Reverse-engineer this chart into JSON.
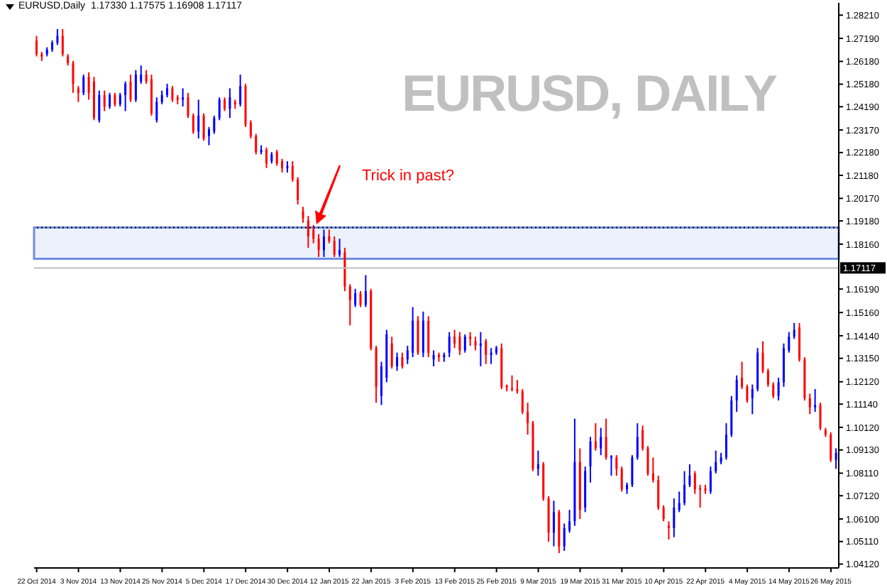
{
  "chart_data": {
    "type": "candlestick",
    "title": "EURUSD,Daily  1.17330 1.17575 1.16908 1.17117",
    "categories": [
      "22 Oct 2014",
      null,
      null,
      null,
      null,
      null,
      null,
      null,
      "3 Nov 2014",
      null,
      null,
      null,
      null,
      null,
      null,
      null,
      "13 Nov 2014",
      null,
      null,
      null,
      null,
      null,
      null,
      null,
      "25 Nov 2014",
      null,
      null,
      null,
      null,
      null,
      null,
      null,
      "5 Dec 2014",
      null,
      null,
      null,
      null,
      null,
      null,
      null,
      "17 Dec 2014",
      null,
      null,
      null,
      null,
      null,
      null,
      null,
      "30 Dec 2014",
      null,
      null,
      null,
      null,
      null,
      null,
      null,
      "12 Jan 2015",
      null,
      null,
      null,
      null,
      null,
      null,
      null,
      "22 Jan 2015",
      null,
      null,
      null,
      null,
      null,
      null,
      null,
      "3 Feb 2015",
      null,
      null,
      null,
      null,
      null,
      null,
      null,
      "13 Feb 2015",
      null,
      null,
      null,
      null,
      null,
      null,
      null,
      "25 Feb 2015",
      null,
      null,
      null,
      null,
      null,
      null,
      null,
      "9 Mar 2015",
      null,
      null,
      null,
      null,
      null,
      null,
      null,
      "19 Mar 2015",
      null,
      null,
      null,
      null,
      null,
      null,
      null,
      "31 Mar 2015",
      null,
      null,
      null,
      null,
      null,
      null,
      null,
      "10 Apr 2015",
      null,
      null,
      null,
      null,
      null,
      null,
      null,
      "22 Apr 2015",
      null,
      null,
      null,
      null,
      null,
      null,
      null,
      "4 May 2015",
      null,
      null,
      null,
      null,
      null,
      null,
      null,
      "14 May 2015",
      null,
      null,
      null,
      null,
      null,
      null,
      null,
      "26 May 2015",
      null
    ],
    "ohlc": [
      [
        1.271,
        1.273,
        1.264,
        1.265
      ],
      [
        1.265,
        1.266,
        1.262,
        1.264
      ],
      [
        1.265,
        1.268,
        1.264,
        1.267
      ],
      [
        1.267,
        1.271,
        1.266,
        1.27
      ],
      [
        1.27,
        1.276,
        1.269,
        1.273
      ],
      [
        1.273,
        1.276,
        1.264,
        1.265
      ],
      [
        1.264,
        1.265,
        1.26,
        1.261
      ],
      [
        1.261,
        1.262,
        1.248,
        1.252
      ],
      [
        1.25,
        1.251,
        1.244,
        1.248
      ],
      [
        1.248,
        1.256,
        1.247,
        1.255
      ],
      [
        1.255,
        1.257,
        1.245,
        1.248
      ],
      [
        1.253,
        1.255,
        1.236,
        1.237
      ],
      [
        1.236,
        1.249,
        1.235,
        1.247
      ],
      [
        1.247,
        1.249,
        1.24,
        1.242
      ],
      [
        1.242,
        1.248,
        1.241,
        1.247
      ],
      [
        1.247,
        1.248,
        1.242,
        1.243
      ],
      [
        1.243,
        1.248,
        1.242,
        1.247
      ],
      [
        1.247,
        1.253,
        1.24,
        1.252
      ],
      [
        1.253,
        1.256,
        1.244,
        1.245
      ],
      [
        1.245,
        1.258,
        1.244,
        1.256
      ],
      [
        1.253,
        1.26,
        1.252,
        1.256
      ],
      [
        1.256,
        1.258,
        1.252,
        1.253
      ],
      [
        1.254,
        1.256,
        1.238,
        1.239
      ],
      [
        1.236,
        1.246,
        1.235,
        1.244
      ],
      [
        1.244,
        1.249,
        1.243,
        1.247
      ],
      [
        1.247,
        1.252,
        1.246,
        1.25
      ],
      [
        1.25,
        1.251,
        1.244,
        1.245
      ],
      [
        1.246,
        1.247,
        1.243,
        1.245
      ],
      [
        1.245,
        1.25,
        1.242,
        1.246
      ],
      [
        1.246,
        1.248,
        1.237,
        1.238
      ],
      [
        1.238,
        1.239,
        1.23,
        1.231
      ],
      [
        1.231,
        1.245,
        1.228,
        1.238
      ],
      [
        1.238,
        1.239,
        1.227,
        1.228
      ],
      [
        1.229,
        1.233,
        1.225,
        1.232
      ],
      [
        1.231,
        1.238,
        1.23,
        1.237
      ],
      [
        1.237,
        1.246,
        1.236,
        1.245
      ],
      [
        1.245,
        1.246,
        1.24,
        1.241
      ],
      [
        1.241,
        1.25,
        1.237,
        1.246
      ],
      [
        1.244,
        1.245,
        1.241,
        1.243
      ],
      [
        1.243,
        1.256,
        1.242,
        1.251
      ],
      [
        1.251,
        1.252,
        1.233,
        1.234
      ],
      [
        1.235,
        1.236,
        1.228,
        1.229
      ],
      [
        1.229,
        1.23,
        1.221,
        1.222
      ],
      [
        1.222,
        1.225,
        1.221,
        1.223
      ],
      [
        1.223,
        1.224,
        1.215,
        1.217
      ],
      [
        1.218,
        1.222,
        1.217,
        1.221
      ],
      [
        1.222,
        1.223,
        1.216,
        1.217
      ],
      [
        1.218,
        1.219,
        1.213,
        1.215
      ],
      [
        1.215,
        1.218,
        1.213,
        1.216
      ],
      [
        1.216,
        1.218,
        1.209,
        1.21
      ],
      [
        1.21,
        1.211,
        1.199,
        1.201
      ],
      [
        1.196,
        1.198,
        1.191,
        1.193
      ],
      [
        1.192,
        1.194,
        1.18,
        1.185
      ],
      [
        1.188,
        1.19,
        1.182,
        1.184
      ],
      [
        1.184,
        1.186,
        1.176,
        1.179
      ],
      [
        1.179,
        1.188,
        1.176,
        1.185
      ],
      [
        1.185,
        1.188,
        1.182,
        1.183
      ],
      [
        1.183,
        1.185,
        1.176,
        1.177
      ],
      [
        1.177,
        1.184,
        1.176,
        1.179
      ],
      [
        1.178,
        1.18,
        1.161,
        1.163
      ],
      [
        1.163,
        1.164,
        1.146,
        1.157
      ],
      [
        1.155,
        1.162,
        1.154,
        1.16
      ],
      [
        1.16,
        1.161,
        1.154,
        1.155
      ],
      [
        1.155,
        1.168,
        1.154,
        1.161
      ],
      [
        1.161,
        1.162,
        1.135,
        1.136
      ],
      [
        1.136,
        1.137,
        1.112,
        1.119
      ],
      [
        1.115,
        1.13,
        1.111,
        1.128
      ],
      [
        1.123,
        1.144,
        1.121,
        1.142
      ],
      [
        1.138,
        1.141,
        1.127,
        1.128
      ],
      [
        1.128,
        1.134,
        1.126,
        1.132
      ],
      [
        1.132,
        1.134,
        1.127,
        1.128
      ],
      [
        1.131,
        1.137,
        1.129,
        1.135
      ],
      [
        1.134,
        1.154,
        1.132,
        1.148
      ],
      [
        1.148,
        1.15,
        1.133,
        1.134
      ],
      [
        1.134,
        1.152,
        1.132,
        1.148
      ],
      [
        1.148,
        1.15,
        1.132,
        1.134
      ],
      [
        1.131,
        1.135,
        1.128,
        1.133
      ],
      [
        1.133,
        1.134,
        1.13,
        1.132
      ],
      [
        1.132,
        1.134,
        1.13,
        1.133
      ],
      [
        1.134,
        1.143,
        1.132,
        1.141
      ],
      [
        1.141,
        1.144,
        1.136,
        1.138
      ],
      [
        1.141,
        1.143,
        1.133,
        1.135
      ],
      [
        1.135,
        1.142,
        1.134,
        1.141
      ],
      [
        1.141,
        1.143,
        1.137,
        1.14
      ],
      [
        1.139,
        1.141,
        1.135,
        1.137
      ],
      [
        1.137,
        1.143,
        1.128,
        1.138
      ],
      [
        1.139,
        1.14,
        1.129,
        1.133
      ],
      [
        1.133,
        1.136,
        1.129,
        1.134
      ],
      [
        1.134,
        1.137,
        1.133,
        1.136
      ],
      [
        1.136,
        1.138,
        1.118,
        1.119
      ],
      [
        1.1195,
        1.12,
        1.117,
        1.1188
      ],
      [
        1.1185,
        1.124,
        1.117,
        1.118
      ],
      [
        1.118,
        1.122,
        1.116,
        1.117
      ],
      [
        1.117,
        1.118,
        1.107,
        1.108
      ],
      [
        1.108,
        1.112,
        1.098,
        1.103
      ],
      [
        1.103,
        1.104,
        1.082,
        1.083
      ],
      [
        1.083,
        1.091,
        1.08,
        1.085
      ],
      [
        1.085,
        1.086,
        1.069,
        1.07
      ],
      [
        1.07,
        1.071,
        1.051,
        1.055
      ],
      [
        1.055,
        1.069,
        1.049,
        1.064
      ],
      [
        1.064,
        1.065,
        1.046,
        1.049
      ],
      [
        1.049,
        1.059,
        1.047,
        1.057
      ],
      [
        1.056,
        1.065,
        1.055,
        1.06
      ],
      [
        1.06,
        1.105,
        1.058,
        1.086
      ],
      [
        1.086,
        1.092,
        1.061,
        1.065
      ],
      [
        1.066,
        1.084,
        1.064,
        1.082
      ],
      [
        1.084,
        1.097,
        1.077,
        1.095
      ],
      [
        1.095,
        1.103,
        1.091,
        1.092
      ],
      [
        1.092,
        1.101,
        1.089,
        1.097
      ],
      [
        1.097,
        1.105,
        1.087,
        1.088
      ],
      [
        1.088,
        1.089,
        1.08,
        1.0885
      ],
      [
        1.088,
        1.089,
        1.08,
        1.083
      ],
      [
        1.083,
        1.084,
        1.073,
        1.074
      ],
      [
        1.074,
        1.077,
        1.072,
        1.076
      ],
      [
        1.076,
        1.089,
        1.075,
        1.088
      ],
      [
        1.088,
        1.103,
        1.087,
        1.097
      ],
      [
        1.1,
        1.102,
        1.091,
        1.092
      ],
      [
        1.092,
        1.093,
        1.08,
        1.081
      ],
      [
        1.081,
        1.088,
        1.077,
        1.078
      ],
      [
        1.078,
        1.08,
        1.065,
        1.066
      ],
      [
        1.066,
        1.067,
        1.06,
        1.061
      ],
      [
        1.058,
        1.06,
        1.052,
        1.057
      ],
      [
        1.057,
        1.07,
        1.053,
        1.066
      ],
      [
        1.065,
        1.073,
        1.064,
        1.068
      ],
      [
        1.068,
        1.082,
        1.067,
        1.076
      ],
      [
        1.076,
        1.085,
        1.075,
        1.08
      ],
      [
        1.081,
        1.082,
        1.072,
        1.074
      ],
      [
        1.0745,
        1.076,
        1.066,
        1.074
      ],
      [
        1.0745,
        1.076,
        1.072,
        1.0735
      ],
      [
        1.073,
        1.084,
        1.072,
        1.082
      ],
      [
        1.082,
        1.091,
        1.081,
        1.086
      ],
      [
        1.086,
        1.09,
        1.085,
        1.088
      ],
      [
        1.088,
        1.103,
        1.087,
        1.098
      ],
      [
        1.098,
        1.115,
        1.097,
        1.113
      ],
      [
        1.113,
        1.124,
        1.108,
        1.122
      ],
      [
        1.123,
        1.13,
        1.118,
        1.119
      ],
      [
        1.119,
        1.12,
        1.112,
        1.113
      ],
      [
        1.114,
        1.12,
        1.107,
        1.118
      ],
      [
        1.118,
        1.136,
        1.117,
        1.134
      ],
      [
        1.134,
        1.139,
        1.125,
        1.126
      ],
      [
        1.126,
        1.127,
        1.119,
        1.12
      ],
      [
        1.12,
        1.121,
        1.114,
        1.115
      ],
      [
        1.115,
        1.123,
        1.113,
        1.121
      ],
      [
        1.121,
        1.138,
        1.119,
        1.136
      ],
      [
        1.135,
        1.143,
        1.134,
        1.141
      ],
      [
        1.141,
        1.147,
        1.14,
        1.144
      ],
      [
        1.145,
        1.147,
        1.13,
        1.131
      ],
      [
        1.131,
        1.132,
        1.113,
        1.114
      ],
      [
        1.114,
        1.116,
        1.107,
        1.11
      ],
      [
        1.11,
        1.118,
        1.108,
        1.111
      ],
      [
        1.111,
        1.112,
        1.1,
        1.101
      ],
      [
        1.1,
        1.101,
        1.097,
        1.098
      ],
      [
        1.098,
        1.099,
        1.086,
        1.087
      ],
      [
        1.087,
        1.092,
        1.083,
        1.09
      ]
    ],
    "colors": [
      "#ff0000",
      "#ff0000",
      "#0000ff",
      "#0000ff",
      "#0000ff",
      "#ff0000",
      "#ff0000",
      "#ff0000",
      "#ff0000",
      "#0000ff",
      "#ff0000",
      "#ff0000",
      "#0000ff",
      "#ff0000",
      "#0000ff",
      "#ff0000",
      "#0000ff",
      "#0000ff",
      "#ff0000",
      "#0000ff",
      "#0000ff",
      "#ff0000",
      "#ff0000",
      "#0000ff",
      "#0000ff",
      "#0000ff",
      "#ff0000",
      "#ff0000",
      "#0000ff",
      "#ff0000",
      "#ff0000",
      "#0000ff",
      "#ff0000",
      "#0000ff",
      "#0000ff",
      "#0000ff",
      "#ff0000",
      "#0000ff",
      "#ff0000",
      "#0000ff",
      "#ff0000",
      "#ff0000",
      "#ff0000",
      "#0000ff",
      "#ff0000",
      "#0000ff",
      "#ff0000",
      "#ff0000",
      "#0000ff",
      "#ff0000",
      "#ff0000",
      "#ff0000",
      "#ff0000",
      "#ff0000",
      "#ff0000",
      "#0000ff",
      "#ff0000",
      "#ff0000",
      "#0000ff",
      "#ff0000",
      "#ff0000",
      "#0000ff",
      "#ff0000",
      "#0000ff",
      "#ff0000",
      "#ff0000",
      "#0000ff",
      "#0000ff",
      "#ff0000",
      "#0000ff",
      "#ff0000",
      "#0000ff",
      "#0000ff",
      "#ff0000",
      "#0000ff",
      "#ff0000",
      "#0000ff",
      "#ff0000",
      "#0000ff",
      "#0000ff",
      "#ff0000",
      "#ff0000",
      "#0000ff",
      "#ff0000",
      "#ff0000",
      "#0000ff",
      "#ff0000",
      "#0000ff",
      "#0000ff",
      "#ff0000",
      "#ff0000",
      "#ff0000",
      "#ff0000",
      "#ff0000",
      "#ff0000",
      "#ff0000",
      "#0000ff",
      "#ff0000",
      "#ff0000",
      "#0000ff",
      "#ff0000",
      "#0000ff",
      "#0000ff",
      "#0000ff",
      "#ff0000",
      "#0000ff",
      "#0000ff",
      "#ff0000",
      "#0000ff",
      "#ff0000",
      "#0000ff",
      "#ff0000",
      "#ff0000",
      "#0000ff",
      "#0000ff",
      "#0000ff",
      "#ff0000",
      "#ff0000",
      "#ff0000",
      "#ff0000",
      "#ff0000",
      "#ff0000",
      "#0000ff",
      "#0000ff",
      "#0000ff",
      "#0000ff",
      "#ff0000",
      "#ff0000",
      "#ff0000",
      "#0000ff",
      "#0000ff",
      "#0000ff",
      "#0000ff",
      "#0000ff",
      "#0000ff",
      "#ff0000",
      "#ff0000",
      "#0000ff",
      "#0000ff",
      "#ff0000",
      "#ff0000",
      "#ff0000",
      "#0000ff",
      "#0000ff",
      "#0000ff",
      "#0000ff",
      "#ff0000",
      "#ff0000",
      "#ff0000",
      "#0000ff",
      "#ff0000",
      "#ff0000",
      "#ff0000",
      "#0000ff"
    ],
    "ylim": [
      1.0395,
      1.2875
    ],
    "yticks": [
      {
        "value": 1.2821,
        "label": "1.28210"
      },
      {
        "value": 1.2719,
        "label": "1.27190"
      },
      {
        "value": 1.2618,
        "label": "1.26180"
      },
      {
        "value": 1.2518,
        "label": "1.25180"
      },
      {
        "value": 1.2419,
        "label": "1.24190"
      },
      {
        "value": 1.2317,
        "label": "1.23170"
      },
      {
        "value": 1.2218,
        "label": "1.22180"
      },
      {
        "value": 1.2118,
        "label": "1.21180"
      },
      {
        "value": 1.2017,
        "label": "1.20170"
      },
      {
        "value": 1.1918,
        "label": "1.19180"
      },
      {
        "value": 1.1816,
        "label": "1.18160"
      },
      {
        "value": 1.1619,
        "label": "1.16190"
      },
      {
        "value": 1.1516,
        "label": "1.15160"
      },
      {
        "value": 1.1414,
        "label": "1.14140"
      },
      {
        "value": 1.1315,
        "label": "1.13150"
      },
      {
        "value": 1.1212,
        "label": "1.12120"
      },
      {
        "value": 1.1114,
        "label": "1.11140"
      },
      {
        "value": 1.1012,
        "label": "1.10120"
      },
      {
        "value": 1.0913,
        "label": "1.09130"
      },
      {
        "value": 1.0811,
        "label": "1.08110"
      },
      {
        "value": 1.0712,
        "label": "1.07120"
      },
      {
        "value": 1.061,
        "label": "1.06100"
      },
      {
        "value": 1.0511,
        "label": "1.05110"
      },
      {
        "value": 1.0412,
        "label": "1.04120"
      }
    ],
    "ref_lines": [
      {
        "axis": "y",
        "value": 1.1889,
        "color": "#000000",
        "line_style": "dotted"
      },
      {
        "axis": "y",
        "value": 1.17117,
        "label": "1.17117",
        "color": "#c0c0c0"
      }
    ],
    "bands": [
      {
        "axis": "y",
        "from": 1.1752,
        "to": 1.1889,
        "color": "#6f8fe6"
      }
    ],
    "annotations": [
      "Trick in past?",
      "EURUSD, DAILY"
    ]
  }
}
